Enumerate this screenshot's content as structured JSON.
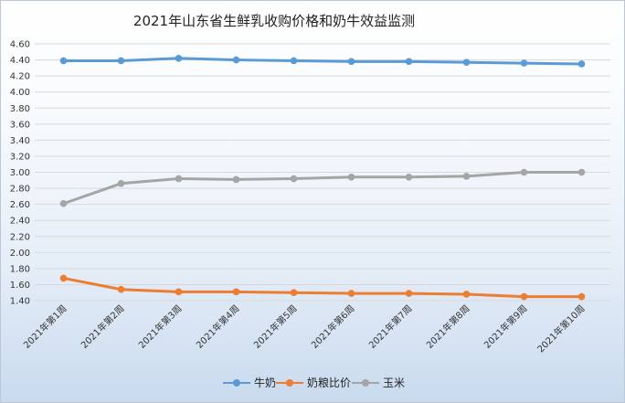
{
  "chart_data": {
    "type": "line",
    "title": "2021年山东省生鲜乳收购价格和奶牛效益监测",
    "categories": [
      "2021年第1周",
      "2021年第2周",
      "2021年第3周",
      "2021年第4周",
      "2021年第5周",
      "2021年第6周",
      "2021年第7周",
      "2021年第8周",
      "2021年第9周",
      "2021年第10周"
    ],
    "ylim": [
      1.4,
      4.6
    ],
    "yticks": [
      "4.60",
      "4.40",
      "4.20",
      "4.00",
      "3.80",
      "3.60",
      "3.40",
      "3.20",
      "3.00",
      "2.80",
      "2.60",
      "2.40",
      "2.20",
      "2.00",
      "1.80",
      "1.60",
      "1.40"
    ],
    "grid": true,
    "legend_position": "bottom",
    "series": [
      {
        "name": "牛奶",
        "color": "#5b9bd5",
        "values": [
          4.39,
          4.39,
          4.42,
          4.4,
          4.39,
          4.38,
          4.38,
          4.37,
          4.36,
          4.35
        ]
      },
      {
        "name": "奶粮比价",
        "color": "#ed7d31",
        "values": [
          1.68,
          1.54,
          1.51,
          1.51,
          1.5,
          1.49,
          1.49,
          1.48,
          1.45,
          1.45
        ]
      },
      {
        "name": "玉米",
        "color": "#a5a5a5",
        "values": [
          2.61,
          2.86,
          2.92,
          2.91,
          2.92,
          2.94,
          2.94,
          2.95,
          3.0,
          3.0
        ]
      }
    ]
  }
}
